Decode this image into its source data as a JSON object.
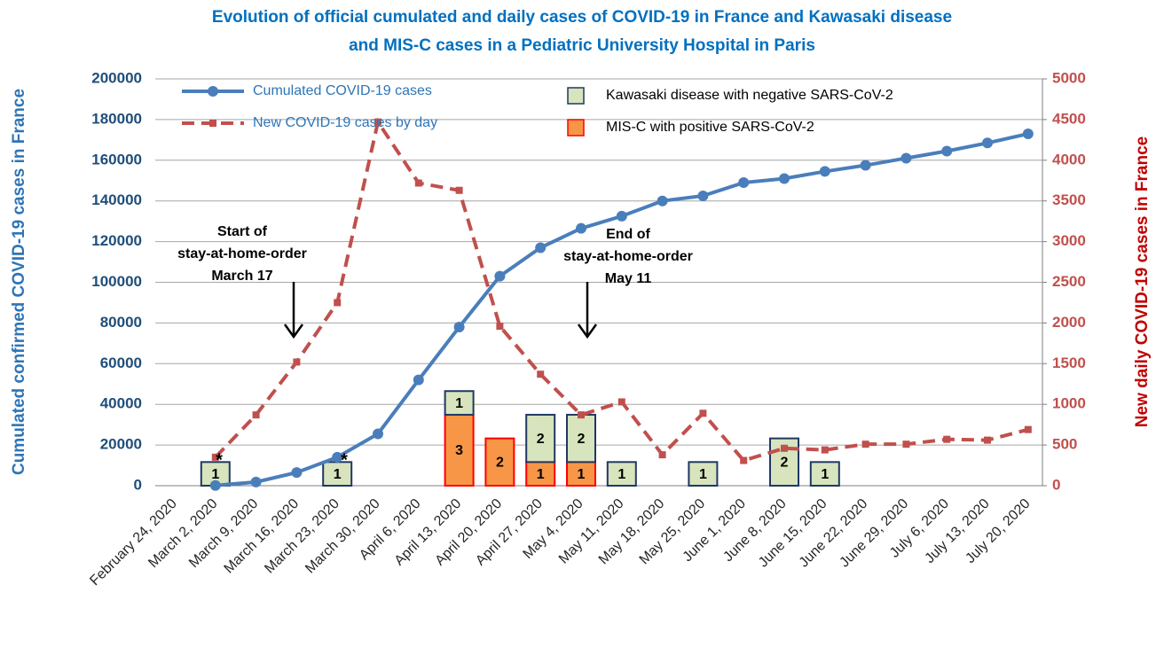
{
  "chart_data": {
    "type": "combo",
    "title": [
      "Evolution of official cumulated and daily cases of COVID-19  in France and Kawasaki disease",
      "and MIS-C cases in a Pediatric University Hospital in Paris"
    ],
    "ylabel": "Cumulated confirmed COVID-19 cases in France",
    "y2label": "New daily COVID-19 cases in France",
    "categories": [
      "February 24, 2020",
      "March 2, 2020",
      "March 9, 2020",
      "March 16, 2020",
      "March 23, 2020",
      "March 30, 2020",
      "April 6, 2020",
      "April 13, 2020",
      "April 20, 2020",
      "April 27, 2020",
      "May 4, 2020",
      "May 11, 2020",
      "May 18, 2020",
      "May 25, 2020",
      "June 1, 2020",
      "June 8, 2020",
      "June 15, 2020",
      "June 22, 2020",
      "June 29, 2020",
      "July 6, 2020",
      "July 13, 2020",
      "July 20, 2020"
    ],
    "ylim": [
      0,
      200000
    ],
    "yticks": [
      0,
      20000,
      40000,
      60000,
      80000,
      100000,
      120000,
      140000,
      160000,
      180000,
      200000
    ],
    "y2lim": [
      0,
      5000
    ],
    "y2ticks": [
      0,
      500,
      1000,
      1500,
      2000,
      2500,
      3000,
      3500,
      4000,
      4500,
      5000
    ],
    "y3lim": [
      0,
      17.2
    ],
    "grid": true,
    "legend": "top-left",
    "series": [
      {
        "name": "Cumulated COVID-19 cases",
        "type": "line",
        "color": "#4a7ebb",
        "axis": "y",
        "values": [
          null,
          100,
          1800,
          6500,
          14000,
          25500,
          52000,
          78000,
          103000,
          117000,
          126500,
          132500,
          140000,
          142500,
          149000,
          151000,
          154500,
          157500,
          161000,
          164500,
          168500,
          173000
        ]
      },
      {
        "name": "New COVID-19 cases by day",
        "type": "dashed-line",
        "color": "#c0504d",
        "axis": "y2",
        "values": [
          null,
          350,
          870,
          1520,
          2250,
          4470,
          3720,
          3630,
          1960,
          1370,
          870,
          1030,
          380,
          890,
          310,
          460,
          440,
          510,
          510,
          570,
          560,
          690
        ]
      },
      {
        "name": "MIS-C with positive SARS-CoV-2",
        "type": "bar",
        "color": "#f79646",
        "edge": "#ff0000",
        "axis": "y3",
        "values": [
          null,
          null,
          null,
          null,
          null,
          null,
          null,
          3,
          2,
          1,
          1,
          null,
          null,
          null,
          null,
          null,
          null,
          null,
          null,
          null,
          null,
          null
        ]
      },
      {
        "name": "Kawasaki disease with negative SARS-CoV-2",
        "type": "bar",
        "color": "#d7e4bd",
        "edge": "#1f3864",
        "axis": "y3",
        "values": [
          null,
          1,
          null,
          null,
          1,
          null,
          null,
          1,
          null,
          2,
          2,
          1,
          null,
          1,
          null,
          2,
          1,
          null,
          null,
          null,
          null,
          null
        ]
      }
    ],
    "annotations": [
      {
        "text": [
          "Start of",
          "stay-at-home-order",
          "March 17"
        ]
      },
      {
        "text": [
          "End of",
          "stay-at-home-order",
          "May 11"
        ]
      },
      {
        "text": "*"
      },
      {
        "text": "*"
      }
    ]
  }
}
